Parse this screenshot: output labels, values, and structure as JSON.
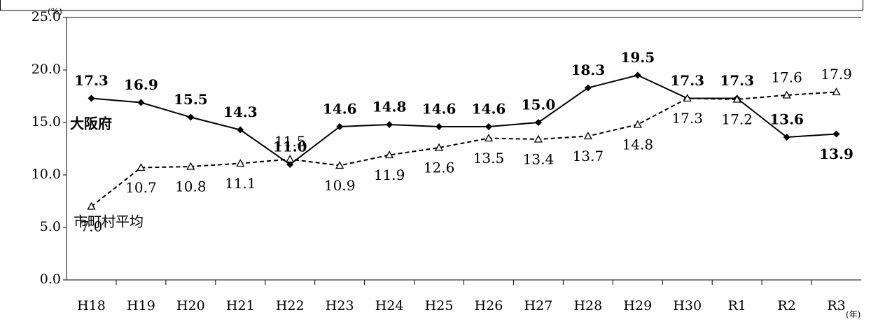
{
  "chart_data": {
    "type": "line",
    "categories": [
      "H18",
      "H19",
      "H20",
      "H21",
      "H22",
      "H23",
      "H24",
      "H25",
      "H26",
      "H27",
      "H28",
      "H29",
      "H30",
      "R1",
      "R2",
      "R3"
    ],
    "series": [
      {
        "name": "大阪府",
        "color": "#000000",
        "style": "solid",
        "values": [
          17.3,
          16.9,
          15.5,
          14.3,
          11.0,
          14.6,
          14.8,
          14.6,
          14.6,
          15.0,
          18.3,
          19.5,
          17.3,
          17.3,
          13.6,
          13.9
        ],
        "value_labels": [
          "17.3",
          "16.9",
          "15.5",
          "14.3",
          "11.0",
          "14.6",
          "14.8",
          "14.6",
          "14.6",
          "15.0",
          "18.3",
          "19.5",
          "17.3",
          "17.3",
          "13.6",
          "13.9"
        ]
      },
      {
        "name": "市町村平均",
        "color": "#000000",
        "style": "dashed",
        "values": [
          7.0,
          10.7,
          10.8,
          11.1,
          11.5,
          10.9,
          11.9,
          12.6,
          13.5,
          13.4,
          13.7,
          14.8,
          17.3,
          17.2,
          17.6,
          17.9
        ],
        "value_labels": [
          "7.0",
          "10.7",
          "10.8",
          "11.1",
          "11.5",
          "10.9",
          "11.9",
          "12.6",
          "13.5",
          "13.4",
          "13.7",
          "14.8",
          "17.3",
          "17.2",
          "17.6",
          "17.9"
        ]
      }
    ],
    "y_unit": "(%)",
    "x_unit": "(年)",
    "ylim": [
      0,
      25
    ],
    "yticks": [
      {
        "value": 0,
        "label": "0.0"
      },
      {
        "value": 5,
        "label": "5.0"
      },
      {
        "value": 10,
        "label": "10.0"
      },
      {
        "value": 15,
        "label": "15.0"
      },
      {
        "value": 20,
        "label": "20.0"
      },
      {
        "value": 25,
        "label": "25.0"
      }
    ],
    "grid": false
  }
}
